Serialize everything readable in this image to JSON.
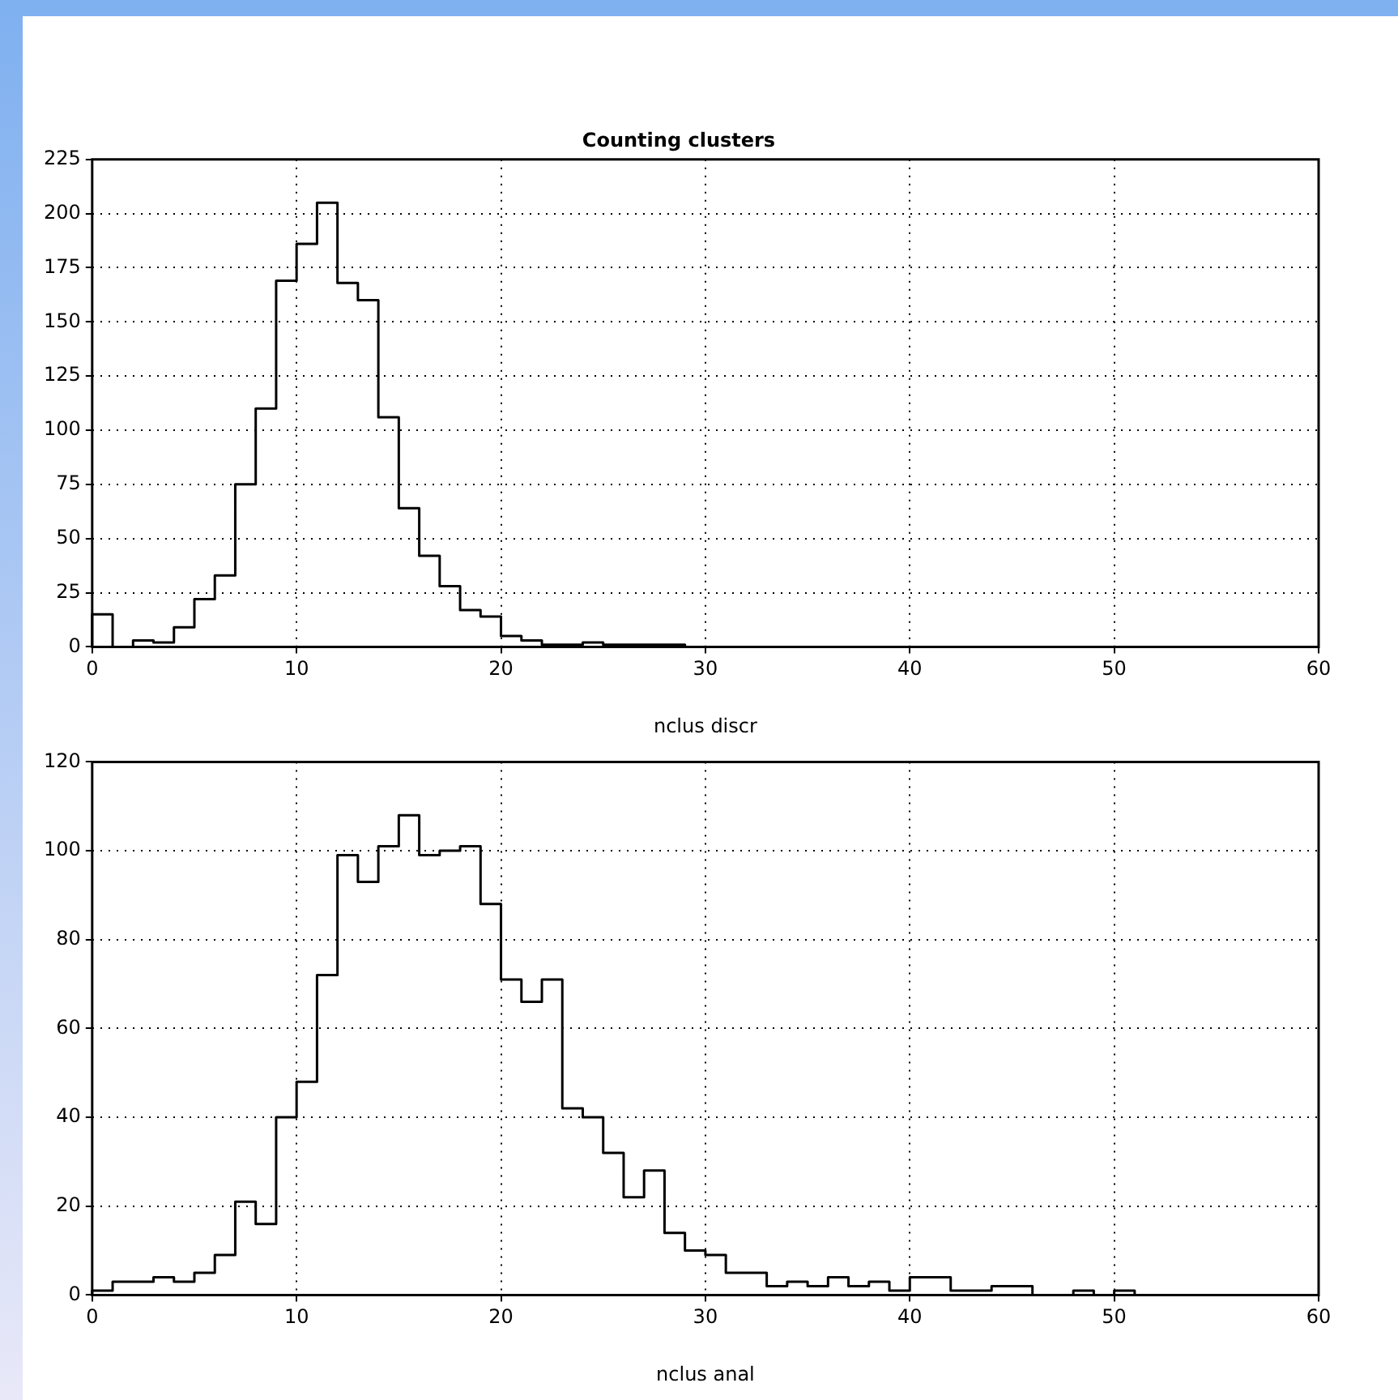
{
  "chart_data": [
    {
      "type": "histogram",
      "title": "Counting clusters",
      "xlabel": "nclus discr",
      "bins": [
        0,
        1,
        2,
        3,
        4,
        5,
        6,
        7,
        8,
        9,
        10,
        11,
        12,
        13,
        14,
        15,
        16,
        17,
        18,
        19,
        20,
        21,
        22,
        23,
        24,
        25,
        26,
        27,
        28,
        29,
        30,
        31,
        32,
        33,
        34,
        35,
        36,
        37,
        38,
        39,
        40,
        41,
        42,
        43,
        44,
        45,
        46,
        47,
        48,
        49,
        50,
        51,
        52,
        53,
        54,
        55,
        56,
        57,
        58,
        59,
        60
      ],
      "values": [
        15,
        0,
        3,
        2,
        9,
        22,
        33,
        75,
        110,
        169,
        186,
        205,
        168,
        160,
        106,
        64,
        42,
        28,
        17,
        14,
        5,
        3,
        1,
        1,
        2,
        1,
        1,
        1,
        1,
        0,
        0,
        0,
        0,
        0,
        0,
        0,
        0,
        0,
        0,
        0,
        0,
        0,
        0,
        0,
        0,
        0,
        0,
        0,
        0,
        0,
        0,
        0,
        0,
        0,
        0,
        0,
        0,
        0,
        0,
        0
      ],
      "color": "#000000",
      "xlim": [
        0,
        60
      ],
      "xticks": [
        0,
        10,
        20,
        30,
        40,
        50,
        60
      ],
      "ylim": [
        0,
        225
      ],
      "yticks": [
        0,
        25,
        50,
        75,
        100,
        125,
        150,
        175,
        200,
        225
      ],
      "grid": true
    },
    {
      "type": "histogram",
      "xlabel": "nclus anal",
      "bins": [
        0,
        1,
        2,
        3,
        4,
        5,
        6,
        7,
        8,
        9,
        10,
        11,
        12,
        13,
        14,
        15,
        16,
        17,
        18,
        19,
        20,
        21,
        22,
        23,
        24,
        25,
        26,
        27,
        28,
        29,
        30,
        31,
        32,
        33,
        34,
        35,
        36,
        37,
        38,
        39,
        40,
        41,
        42,
        43,
        44,
        45,
        46,
        47,
        48,
        49,
        50,
        51,
        52,
        53,
        54,
        55,
        56,
        57,
        58,
        59,
        60
      ],
      "values": [
        1,
        3,
        3,
        4,
        3,
        5,
        9,
        21,
        16,
        40,
        48,
        72,
        99,
        93,
        101,
        108,
        99,
        100,
        101,
        88,
        71,
        66,
        71,
        42,
        40,
        32,
        22,
        28,
        14,
        10,
        9,
        5,
        5,
        2,
        3,
        2,
        4,
        2,
        3,
        1,
        4,
        4,
        1,
        1,
        2,
        2,
        0,
        0,
        1,
        0,
        1,
        0,
        0,
        0,
        0,
        0,
        0,
        0,
        0,
        0
      ],
      "color": "#000000",
      "xlim": [
        0,
        60
      ],
      "xticks": [
        0,
        10,
        20,
        30,
        40,
        50,
        60
      ],
      "ylim": [
        0,
        120
      ],
      "yticks": [
        0,
        20,
        40,
        60,
        80,
        100,
        120
      ],
      "grid": true
    }
  ]
}
